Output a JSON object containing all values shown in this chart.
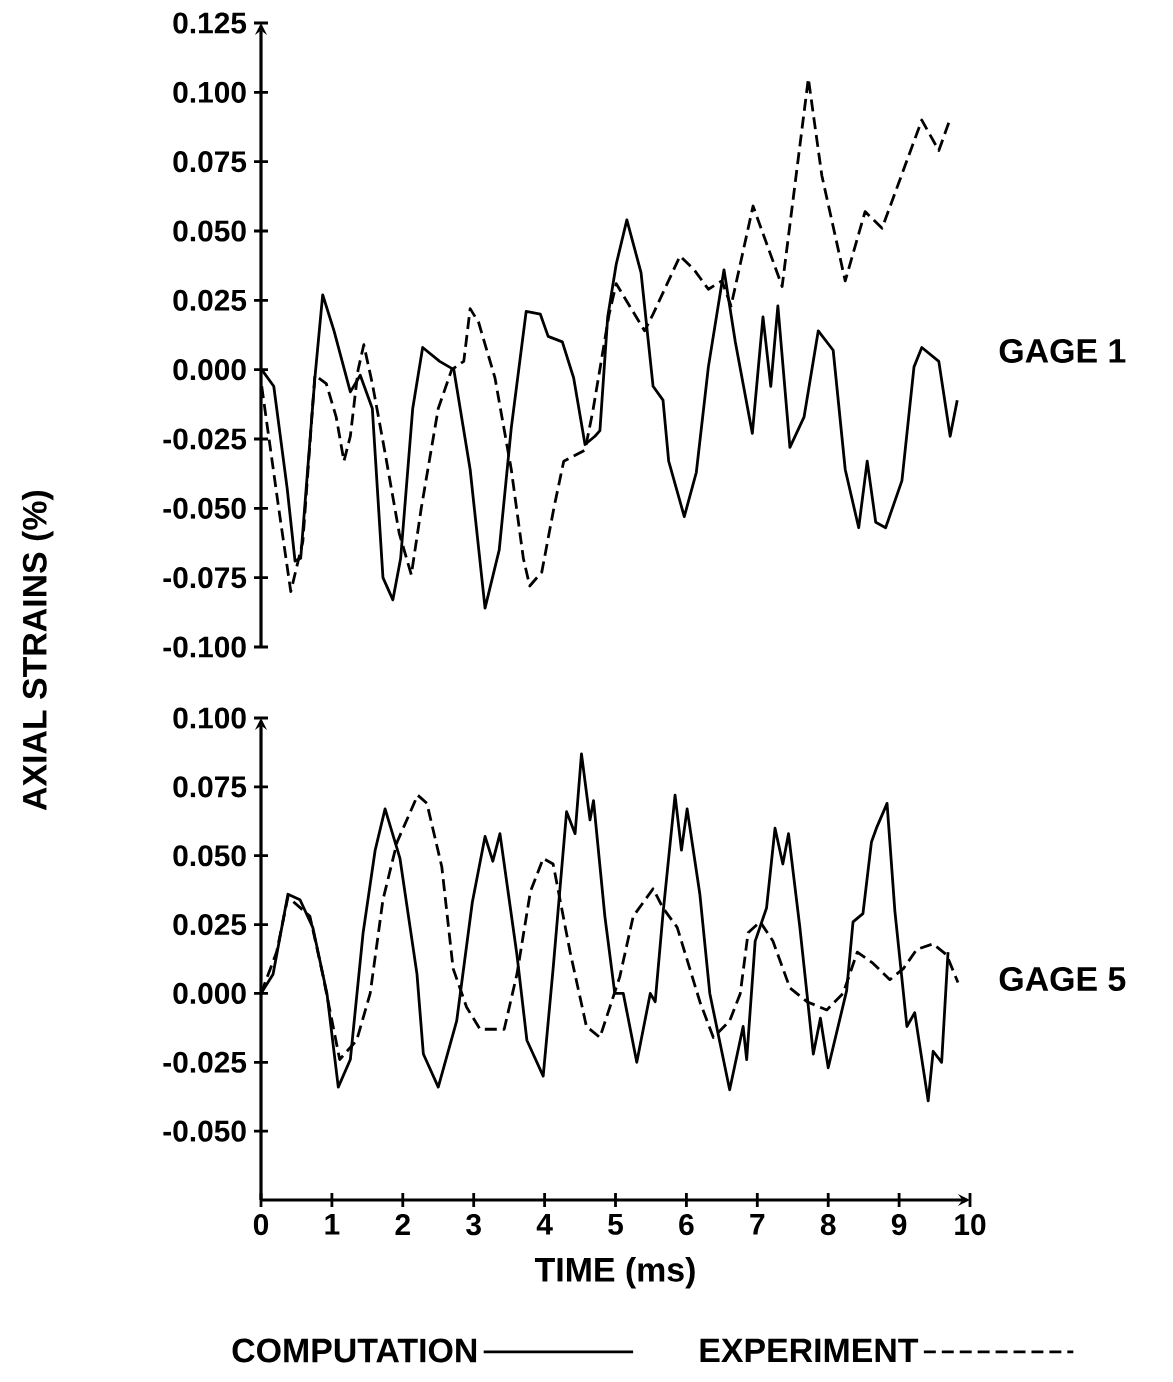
{
  "chart_data": [
    {
      "type": "line",
      "ylabel": "AXIAL STRAINS (%)",
      "annotations": [
        "GAGE 1"
      ],
      "xlim": [
        0,
        10
      ],
      "tick_labels": "y",
      "ylim": [
        -0.1,
        0.125
      ],
      "yticks": [
        {
          "value": -0.1,
          "label": "-0.100"
        },
        {
          "value": -0.075,
          "label": "-0.075"
        },
        {
          "value": -0.05,
          "label": "-0.050"
        },
        {
          "value": -0.025,
          "label": "-0.025"
        },
        {
          "value": 0,
          "label": "0.000"
        },
        {
          "value": 0.025,
          "label": "0.025"
        },
        {
          "value": 0.05,
          "label": "0.050"
        },
        {
          "value": 0.075,
          "label": "0.075"
        },
        {
          "value": 0.1,
          "label": "0.100"
        },
        {
          "value": 0.125,
          "label": "0.125"
        }
      ],
      "series": [
        {
          "color": "#000000",
          "line_style": "solid",
          "x": [
            0.01,
            0.18,
            0.37,
            0.48,
            0.56,
            0.76,
            0.87,
            1.03,
            1.26,
            1.4,
            1.57,
            1.72,
            1.86,
            1.97,
            2.14,
            2.28,
            2.52,
            2.72,
            2.95,
            3.16,
            3.36,
            3.53,
            3.74,
            3.94,
            4.05,
            4.25,
            4.41,
            4.57,
            4.71,
            4.78,
            4.89,
            5.01,
            5.16,
            5.36,
            5.53,
            5.67,
            5.75,
            5.97,
            6.14,
            6.31,
            6.53,
            6.69,
            6.93,
            7.08,
            7.19,
            7.29,
            7.46,
            7.66,
            7.86,
            8.07,
            8.24,
            8.43,
            8.55,
            8.67,
            8.81,
            9.04,
            9.21,
            9.32,
            9.56,
            9.72,
            9.82
          ],
          "values": [
            0.0,
            -0.006,
            -0.043,
            -0.069,
            -0.068,
            -0.003,
            0.027,
            0.014,
            -0.008,
            -0.002,
            -0.014,
            -0.075,
            -0.083,
            -0.068,
            -0.014,
            0.008,
            0.003,
            0.0,
            -0.036,
            -0.086,
            -0.065,
            -0.021,
            0.021,
            0.02,
            0.012,
            0.01,
            -0.003,
            -0.027,
            -0.024,
            -0.022,
            0.019,
            0.038,
            0.054,
            0.035,
            -0.006,
            -0.011,
            -0.033,
            -0.053,
            -0.037,
            0.001,
            0.036,
            0.01,
            -0.023,
            0.019,
            -0.006,
            0.023,
            -0.028,
            -0.017,
            0.014,
            0.007,
            -0.036,
            -0.057,
            -0.033,
            -0.055,
            -0.057,
            -0.04,
            0.001,
            0.008,
            0.003,
            -0.024,
            -0.011
          ]
        },
        {
          "color": "#000000",
          "line_style": "dashed",
          "x": [
            0.01,
            0.25,
            0.42,
            0.59,
            0.76,
            0.92,
            1.06,
            1.17,
            1.26,
            1.37,
            1.45,
            1.57,
            1.75,
            1.95,
            2.12,
            2.26,
            2.5,
            2.69,
            2.86,
            2.95,
            3.07,
            3.3,
            3.53,
            3.7,
            3.79,
            3.96,
            4.13,
            4.27,
            4.57,
            4.68,
            4.91,
            5.01,
            5.41,
            5.53,
            5.91,
            6.11,
            6.31,
            6.5,
            6.63,
            6.94,
            7.35,
            7.72,
            7.91,
            8.24,
            8.52,
            8.76,
            9.32,
            9.56,
            9.7
          ],
          "values": [
            -0.006,
            -0.05,
            -0.08,
            -0.062,
            -0.002,
            -0.005,
            -0.017,
            -0.033,
            -0.024,
            0.0,
            0.009,
            -0.005,
            -0.03,
            -0.059,
            -0.074,
            -0.05,
            -0.014,
            0.0,
            0.003,
            0.022,
            0.017,
            -0.003,
            -0.036,
            -0.068,
            -0.078,
            -0.073,
            -0.05,
            -0.033,
            -0.029,
            -0.015,
            0.02,
            0.031,
            0.014,
            0.02,
            0.041,
            0.036,
            0.029,
            0.032,
            0.023,
            0.059,
            0.03,
            0.105,
            0.07,
            0.032,
            0.057,
            0.051,
            0.09,
            0.079,
            0.089
          ]
        }
      ]
    },
    {
      "type": "line",
      "xlabel": "TIME (ms)",
      "annotations": [
        "GAGE 5"
      ],
      "legend": "bottom",
      "xlim": [
        0,
        10
      ],
      "xticks": [
        0,
        1,
        2,
        3,
        4,
        5,
        6,
        7,
        8,
        9,
        10
      ],
      "ylim": [
        -0.075,
        0.1
      ],
      "yticks": [
        {
          "value": -0.05,
          "label": "-0.050"
        },
        {
          "value": -0.025,
          "label": "-0.025"
        },
        {
          "value": 0,
          "label": "0.000"
        },
        {
          "value": 0.025,
          "label": "0.025"
        },
        {
          "value": 0.05,
          "label": "0.050"
        },
        {
          "value": 0.075,
          "label": "0.075"
        },
        {
          "value": 0.1,
          "label": "0.100"
        }
      ],
      "series": [
        {
          "name": "COMPUTATION",
          "color": "#000000",
          "line_style": "solid",
          "x": [
            0,
            0.17,
            0.38,
            0.55,
            0.73,
            0.93,
            1.09,
            1.26,
            1.44,
            1.61,
            1.75,
            1.96,
            2.2,
            2.29,
            2.5,
            2.76,
            2.98,
            3.16,
            3.27,
            3.37,
            3.61,
            3.75,
            3.98,
            4.12,
            4.31,
            4.43,
            4.52,
            4.64,
            4.69,
            4.85,
            4.99,
            5.11,
            5.3,
            5.49,
            5.56,
            5.67,
            5.84,
            5.93,
            6.01,
            6.19,
            6.33,
            6.61,
            6.8,
            6.85,
            6.97,
            7.13,
            7.25,
            7.36,
            7.44,
            7.6,
            7.7,
            7.79,
            7.89,
            8.0,
            8.26,
            8.35,
            8.49,
            8.61,
            8.68,
            8.83,
            8.94,
            9.11,
            9.22,
            9.41,
            9.48,
            9.6,
            9.69
          ],
          "values": [
            0.0,
            0.007,
            0.036,
            0.034,
            0.024,
            0.0,
            -0.034,
            -0.024,
            0.022,
            0.052,
            0.067,
            0.049,
            0.007,
            -0.022,
            -0.034,
            -0.01,
            0.033,
            0.057,
            0.048,
            0.058,
            0.014,
            -0.017,
            -0.03,
            0.009,
            0.066,
            0.058,
            0.087,
            0.063,
            0.07,
            0.028,
            0.0,
            0.0,
            -0.025,
            0.0,
            -0.003,
            0.029,
            0.072,
            0.052,
            0.067,
            0.036,
            0.0,
            -0.035,
            -0.012,
            -0.024,
            0.019,
            0.031,
            0.06,
            0.047,
            0.058,
            0.024,
            0.0,
            -0.022,
            -0.009,
            -0.027,
            0.001,
            0.026,
            0.029,
            0.055,
            0.06,
            0.069,
            0.03,
            -0.012,
            -0.007,
            -0.039,
            -0.021,
            -0.025,
            0.015
          ]
        },
        {
          "name": "EXPERIMENT",
          "color": "#000000",
          "line_style": "dashed",
          "x": [
            0,
            0.22,
            0.38,
            0.69,
            0.87,
            1.11,
            1.35,
            1.54,
            1.72,
            1.92,
            2.21,
            2.34,
            2.55,
            2.71,
            2.9,
            3.09,
            3.43,
            3.61,
            3.8,
            3.98,
            4.12,
            4.36,
            4.59,
            4.78,
            5.06,
            5.25,
            5.53,
            5.67,
            5.87,
            6.19,
            6.38,
            6.61,
            6.76,
            6.87,
            7.04,
            7.22,
            7.46,
            7.7,
            7.98,
            8.21,
            8.41,
            8.63,
            8.87,
            9.06,
            9.25,
            9.48,
            9.67,
            9.83
          ],
          "values": [
            0.0,
            0.015,
            0.035,
            0.028,
            0.007,
            -0.024,
            -0.017,
            0.0,
            0.034,
            0.055,
            0.072,
            0.069,
            0.046,
            0.009,
            -0.005,
            -0.013,
            -0.013,
            0.007,
            0.037,
            0.049,
            0.047,
            0.015,
            -0.012,
            -0.016,
            0.006,
            0.028,
            0.038,
            0.031,
            0.024,
            -0.003,
            -0.016,
            -0.01,
            0.0,
            0.022,
            0.026,
            0.019,
            0.002,
            -0.003,
            -0.006,
            0.0,
            0.015,
            0.011,
            0.005,
            0.009,
            0.016,
            0.018,
            0.014,
            0.004
          ]
        }
      ]
    }
  ]
}
